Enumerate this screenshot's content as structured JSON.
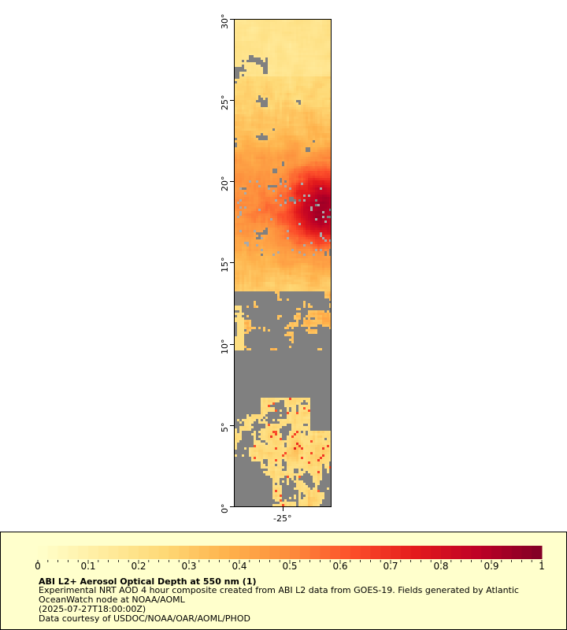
{
  "map": {
    "lat_labels": [
      "0°",
      "5°",
      "10°",
      "15°",
      "20°",
      "25°",
      "30°"
    ],
    "lon_label": "-25°",
    "land_ocean_fill": "#808080",
    "no_data_fill": "#aaaaaa"
  },
  "legend": {
    "tick_labels": [
      "0",
      "0.1",
      "0.2",
      "0.3",
      "0.4",
      "0.5",
      "0.6",
      "0.7",
      "0.8",
      "0.9",
      "1"
    ],
    "title": "ABI L2+ Aerosol Optical Depth at 550 nm (1)",
    "description": "Experimental NRT AOD 4 hour composite created from ABI L2 data from GOES-19. Fields generated by Atlantic OceanWatch node at NOAA/AOML",
    "timestamp": "(2025-07-27T18:00:00Z)",
    "credit": "Data courtesy of USDOC/NOAA/OAR/AOML/PHOD",
    "background": "#ffffcc",
    "colormap": [
      "#ffffcc",
      "#ffeda0",
      "#fed976",
      "#feb24c",
      "#fd8d3c",
      "#fc4e2a",
      "#e31a1c",
      "#bd0026",
      "#800026"
    ],
    "range": [
      0,
      1
    ]
  }
}
